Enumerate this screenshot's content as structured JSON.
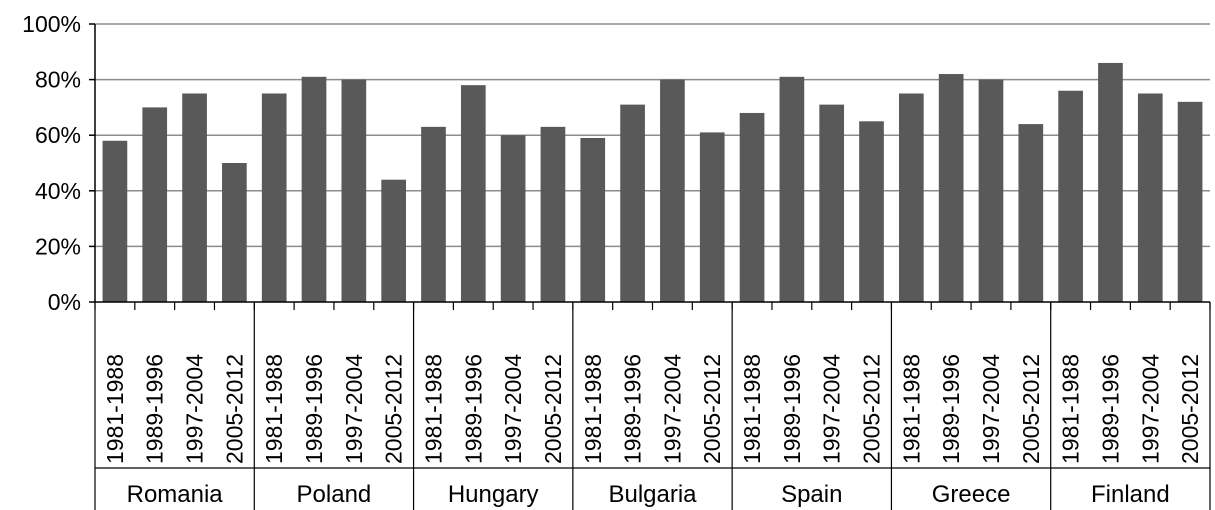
{
  "chart_data": {
    "type": "bar",
    "groups": [
      {
        "name": "Romania",
        "categories": [
          "1981-1988",
          "1989-1996",
          "1997-2004",
          "2005-2012"
        ],
        "values": [
          58,
          70,
          75,
          50
        ]
      },
      {
        "name": "Poland",
        "categories": [
          "1981-1988",
          "1989-1996",
          "1997-2004",
          "2005-2012"
        ],
        "values": [
          75,
          81,
          80,
          44
        ]
      },
      {
        "name": "Hungary",
        "categories": [
          "1981-1988",
          "1989-1996",
          "1997-2004",
          "2005-2012"
        ],
        "values": [
          63,
          78,
          60,
          63
        ]
      },
      {
        "name": "Bulgaria",
        "categories": [
          "1981-1988",
          "1989-1996",
          "1997-2004",
          "2005-2012"
        ],
        "values": [
          59,
          71,
          80,
          61
        ]
      },
      {
        "name": "Spain",
        "categories": [
          "1981-1988",
          "1989-1996",
          "1997-2004",
          "2005-2012"
        ],
        "values": [
          68,
          81,
          71,
          65
        ]
      },
      {
        "name": "Greece",
        "categories": [
          "1981-1988",
          "1989-1996",
          "1997-2004",
          "2005-2012"
        ],
        "values": [
          75,
          82,
          80,
          64
        ]
      },
      {
        "name": "Finland",
        "categories": [
          "1981-1988",
          "1989-1996",
          "1997-2004",
          "2005-2012"
        ],
        "values": [
          76,
          86,
          75,
          72
        ]
      }
    ],
    "yticks": [
      "0%",
      "20%",
      "40%",
      "60%",
      "80%",
      "100%"
    ],
    "ylim": [
      0,
      100
    ],
    "title": "",
    "xlabel": "",
    "ylabel": "",
    "grid": true,
    "legend": "none",
    "bar_color": "#595959",
    "grid_color": "#8c8c8c"
  }
}
